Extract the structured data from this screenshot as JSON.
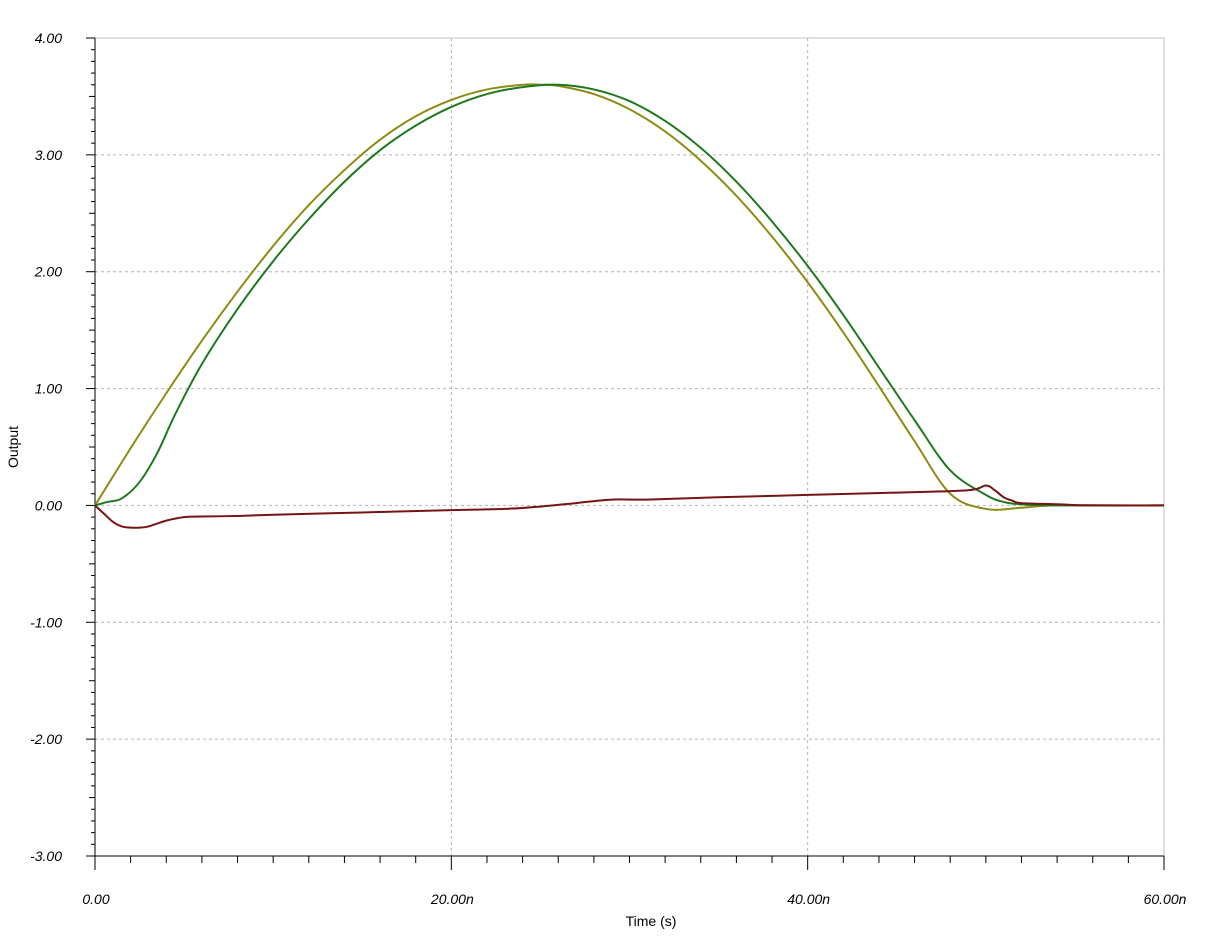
{
  "chart_data": {
    "type": "line",
    "xlabel": "Time (s)",
    "ylabel": "Output",
    "xlim": [
      0,
      60
    ],
    "ylim": [
      -3,
      4
    ],
    "x_ticks": [
      {
        "value": 0,
        "label": "0.00"
      },
      {
        "value": 20,
        "label": "20.00n"
      },
      {
        "value": 40,
        "label": "40.00n"
      },
      {
        "value": 60,
        "label": "60.00n"
      }
    ],
    "y_ticks": [
      {
        "value": 4,
        "label": "4.00"
      },
      {
        "value": 3,
        "label": "3.00"
      },
      {
        "value": 2,
        "label": "2.00"
      },
      {
        "value": 1,
        "label": "1.00"
      },
      {
        "value": 0,
        "label": "0.00"
      },
      {
        "value": -1,
        "label": "-1.00"
      },
      {
        "value": -2,
        "label": "-2.00"
      },
      {
        "value": -3,
        "label": "-3.00"
      }
    ],
    "grid": true,
    "legend": "none",
    "series": [
      {
        "color": "#8c8c14",
        "points": [
          [
            0,
            0
          ],
          [
            2,
            0.49
          ],
          [
            4,
            0.96
          ],
          [
            6,
            1.41
          ],
          [
            8,
            1.83
          ],
          [
            10,
            2.22
          ],
          [
            12,
            2.57
          ],
          [
            14,
            2.87
          ],
          [
            16,
            3.13
          ],
          [
            18,
            3.33
          ],
          [
            20,
            3.47
          ],
          [
            22,
            3.56
          ],
          [
            24,
            3.6
          ],
          [
            25,
            3.6
          ],
          [
            26,
            3.59
          ],
          [
            28,
            3.52
          ],
          [
            30,
            3.39
          ],
          [
            32,
            3.2
          ],
          [
            34,
            2.95
          ],
          [
            36,
            2.65
          ],
          [
            38,
            2.3
          ],
          [
            40,
            1.91
          ],
          [
            42,
            1.48
          ],
          [
            44,
            1.02
          ],
          [
            46,
            0.55
          ],
          [
            48,
            0.1
          ],
          [
            50,
            -0.03
          ],
          [
            52,
            -0.02
          ],
          [
            54,
            0
          ],
          [
            60,
            0
          ]
        ]
      },
      {
        "color": "#1e781e",
        "points": [
          [
            0,
            0
          ],
          [
            0.7,
            0.03
          ],
          [
            1.5,
            0.06
          ],
          [
            2.5,
            0.2
          ],
          [
            3.5,
            0.45
          ],
          [
            4.5,
            0.78
          ],
          [
            6,
            1.21
          ],
          [
            8,
            1.68
          ],
          [
            10,
            2.09
          ],
          [
            12,
            2.45
          ],
          [
            14,
            2.77
          ],
          [
            16,
            3.04
          ],
          [
            18,
            3.25
          ],
          [
            20,
            3.41
          ],
          [
            22,
            3.52
          ],
          [
            24,
            3.58
          ],
          [
            26,
            3.6
          ],
          [
            28,
            3.56
          ],
          [
            30,
            3.46
          ],
          [
            32,
            3.29
          ],
          [
            34,
            3.06
          ],
          [
            36,
            2.77
          ],
          [
            38,
            2.43
          ],
          [
            40,
            2.05
          ],
          [
            42,
            1.63
          ],
          [
            44,
            1.18
          ],
          [
            46,
            0.73
          ],
          [
            48,
            0.3
          ],
          [
            50,
            0.09
          ],
          [
            51,
            0.03
          ],
          [
            52,
            0.01
          ],
          [
            54,
            0
          ],
          [
            60,
            0
          ]
        ]
      },
      {
        "color": "#781414",
        "points": [
          [
            0,
            0
          ],
          [
            0.5,
            -0.07
          ],
          [
            1,
            -0.14
          ],
          [
            1.5,
            -0.18
          ],
          [
            2,
            -0.19
          ],
          [
            2.5,
            -0.19
          ],
          [
            3,
            -0.18
          ],
          [
            4,
            -0.13
          ],
          [
            5,
            -0.1
          ],
          [
            6,
            -0.095
          ],
          [
            8,
            -0.09
          ],
          [
            10,
            -0.08
          ],
          [
            15,
            -0.06
          ],
          [
            20,
            -0.04
          ],
          [
            23,
            -0.03
          ],
          [
            25,
            -0.01
          ],
          [
            27,
            0.02
          ],
          [
            29,
            0.05
          ],
          [
            31,
            0.05
          ],
          [
            35,
            0.07
          ],
          [
            40,
            0.09
          ],
          [
            45,
            0.11
          ],
          [
            49,
            0.13
          ],
          [
            50,
            0.17
          ],
          [
            50.5,
            0.13
          ],
          [
            51,
            0.07
          ],
          [
            51.5,
            0.04
          ],
          [
            52,
            0.02
          ],
          [
            54,
            0.01
          ],
          [
            56,
            0
          ],
          [
            60,
            0
          ]
        ]
      }
    ]
  }
}
